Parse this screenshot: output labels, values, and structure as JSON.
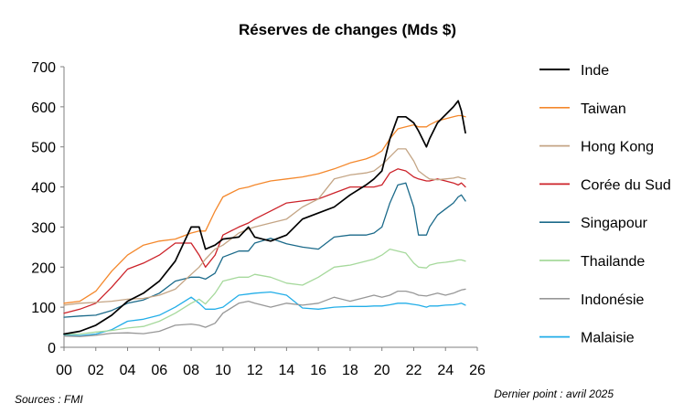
{
  "chart_data": {
    "type": "line",
    "title": "Réserves de changes  (Mds $)",
    "xlabel": "",
    "ylabel": "",
    "xlim": [
      2000,
      2026
    ],
    "ylim": [
      0,
      700
    ],
    "x_ticks": [
      "00",
      "02",
      "04",
      "06",
      "08",
      "10",
      "12",
      "14",
      "16",
      "18",
      "20",
      "22",
      "24",
      "26"
    ],
    "y_ticks": [
      "0",
      "100",
      "200",
      "300",
      "400",
      "500",
      "600",
      "700"
    ],
    "grid": false,
    "legend_position": "right",
    "x": [
      2000,
      2001,
      2002,
      2003,
      2004,
      2005,
      2006,
      2007,
      2008,
      2008.5,
      2008.9,
      2009.5,
      2010,
      2011,
      2011.6,
      2012,
      2013,
      2014,
      2015,
      2016,
      2017,
      2018,
      2019,
      2019.5,
      2020,
      2020.5,
      2021,
      2021.5,
      2022,
      2022.3,
      2022.8,
      2023,
      2023.5,
      2024,
      2024.5,
      2024.8,
      2025,
      2025.25
    ],
    "series": [
      {
        "name": "Inde",
        "color": "#000000",
        "width": 1.7,
        "values": [
          33,
          40,
          55,
          80,
          115,
          135,
          165,
          215,
          300,
          300,
          245,
          255,
          270,
          275,
          300,
          275,
          265,
          280,
          320,
          335,
          350,
          380,
          405,
          420,
          440,
          520,
          575,
          575,
          560,
          540,
          500,
          520,
          560,
          580,
          600,
          615,
          590,
          535
        ]
      },
      {
        "name": "Taiwan",
        "color": "#F4882C",
        "width": 1.3,
        "values": [
          110,
          115,
          140,
          190,
          230,
          255,
          265,
          270,
          285,
          290,
          290,
          340,
          375,
          395,
          400,
          405,
          415,
          420,
          425,
          433,
          445,
          460,
          470,
          478,
          490,
          520,
          545,
          550,
          555,
          550,
          550,
          555,
          565,
          570,
          575,
          578,
          578,
          575
        ]
      },
      {
        "name": "Hong Kong",
        "color": "#C4A585",
        "width": 1.3,
        "values": [
          105,
          110,
          112,
          115,
          120,
          122,
          130,
          145,
          182,
          200,
          220,
          245,
          255,
          285,
          295,
          300,
          310,
          320,
          350,
          370,
          420,
          430,
          435,
          440,
          455,
          475,
          495,
          495,
          465,
          440,
          425,
          420,
          418,
          420,
          422,
          425,
          422,
          420
        ]
      },
      {
        "name": "Corée du Sud",
        "color": "#CC2229",
        "width": 1.3,
        "values": [
          85,
          95,
          110,
          150,
          195,
          210,
          230,
          260,
          260,
          230,
          200,
          230,
          280,
          300,
          310,
          320,
          340,
          360,
          365,
          370,
          385,
          400,
          400,
          400,
          405,
          435,
          445,
          440,
          425,
          420,
          415,
          415,
          420,
          415,
          410,
          405,
          410,
          400
        ]
      },
      {
        "name": "Singapour",
        "color": "#1B6A8A",
        "width": 1.3,
        "values": [
          75,
          78,
          80,
          92,
          110,
          118,
          135,
          165,
          175,
          175,
          170,
          185,
          225,
          240,
          240,
          260,
          272,
          258,
          250,
          245,
          275,
          280,
          280,
          285,
          300,
          360,
          405,
          410,
          350,
          280,
          280,
          300,
          330,
          345,
          360,
          375,
          380,
          365
        ]
      },
      {
        "name": "Thailande",
        "color": "#A6D99C",
        "width": 1.3,
        "values": [
          32,
          33,
          38,
          42,
          48,
          52,
          65,
          85,
          110,
          120,
          108,
          135,
          165,
          175,
          175,
          182,
          175,
          160,
          155,
          175,
          200,
          205,
          215,
          220,
          230,
          245,
          240,
          235,
          210,
          200,
          198,
          205,
          210,
          212,
          215,
          218,
          218,
          215
        ]
      },
      {
        "name": "Indonésie",
        "color": "#979797",
        "width": 1.3,
        "values": [
          28,
          27,
          30,
          35,
          36,
          34,
          40,
          55,
          58,
          55,
          50,
          60,
          85,
          110,
          115,
          110,
          100,
          110,
          105,
          110,
          125,
          115,
          125,
          130,
          125,
          130,
          140,
          140,
          135,
          130,
          128,
          130,
          135,
          130,
          135,
          140,
          143,
          145
        ]
      },
      {
        "name": "Malaisie",
        "color": "#23AEE8",
        "width": 1.3,
        "values": [
          30,
          29,
          33,
          44,
          65,
          70,
          80,
          100,
          125,
          110,
          95,
          95,
          100,
          130,
          133,
          135,
          138,
          130,
          98,
          95,
          100,
          102,
          102,
          103,
          103,
          106,
          110,
          110,
          107,
          105,
          100,
          103,
          103,
          105,
          106,
          108,
          110,
          105
        ]
      }
    ]
  },
  "footer": {
    "source": "Sources : FMI",
    "last_point": "Dernier point : avril 2025"
  }
}
